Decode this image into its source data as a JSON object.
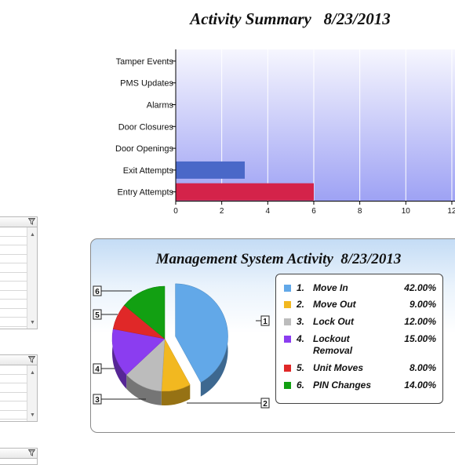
{
  "chart_data": [
    {
      "type": "bar",
      "orientation": "horizontal",
      "title": "Activity Summary   8/23/2013",
      "categories": [
        "Tamper Events",
        "PMS Updates",
        "Alarms",
        "Door Closures",
        "Door Openings",
        "Exit Attempts",
        "Entry Attempts"
      ],
      "values": [
        0,
        0,
        0,
        0,
        0,
        3,
        6
      ],
      "xlim": [
        0,
        12
      ],
      "xticks": [
        "0",
        "2",
        "4",
        "6",
        "8",
        "10",
        "12"
      ],
      "grid": true,
      "bar_colors": {
        "Exit Attempts": "#4a68c8",
        "Entry Attempts": "#d4234a"
      },
      "plot_background": "#b0b4f5"
    },
    {
      "type": "pie",
      "title": "Management System Activity  8/23/2013",
      "slices": [
        {
          "index": "1.",
          "label": "Move In",
          "value": 42.0,
          "display": "42.00%",
          "color": "#62a8e8"
        },
        {
          "index": "2.",
          "label": "Move Out",
          "value": 9.0,
          "display": "9.00%",
          "color": "#f2b820"
        },
        {
          "index": "3.",
          "label": "Lock Out",
          "value": 12.0,
          "display": "12.00%",
          "color": "#bcbcbc"
        },
        {
          "index": "4.",
          "label": "Lockout Removal",
          "value": 15.0,
          "display": "15.00%",
          "color": "#8b3df0"
        },
        {
          "index": "5.",
          "label": "Unit Moves",
          "value": 8.0,
          "display": "8.00%",
          "color": "#e02828"
        },
        {
          "index": "6.",
          "label": "PIN Changes",
          "value": 14.0,
          "display": "14.00%",
          "color": "#12a012"
        }
      ],
      "callouts": [
        "1",
        "2",
        "3",
        "4",
        "5",
        "6"
      ],
      "legend_position": "right"
    }
  ],
  "side_grids": {
    "filter_icon": "filter-icon",
    "scroll_up_icon": "scroll-up-icon",
    "scroll_down_icon": "scroll-down-icon"
  }
}
